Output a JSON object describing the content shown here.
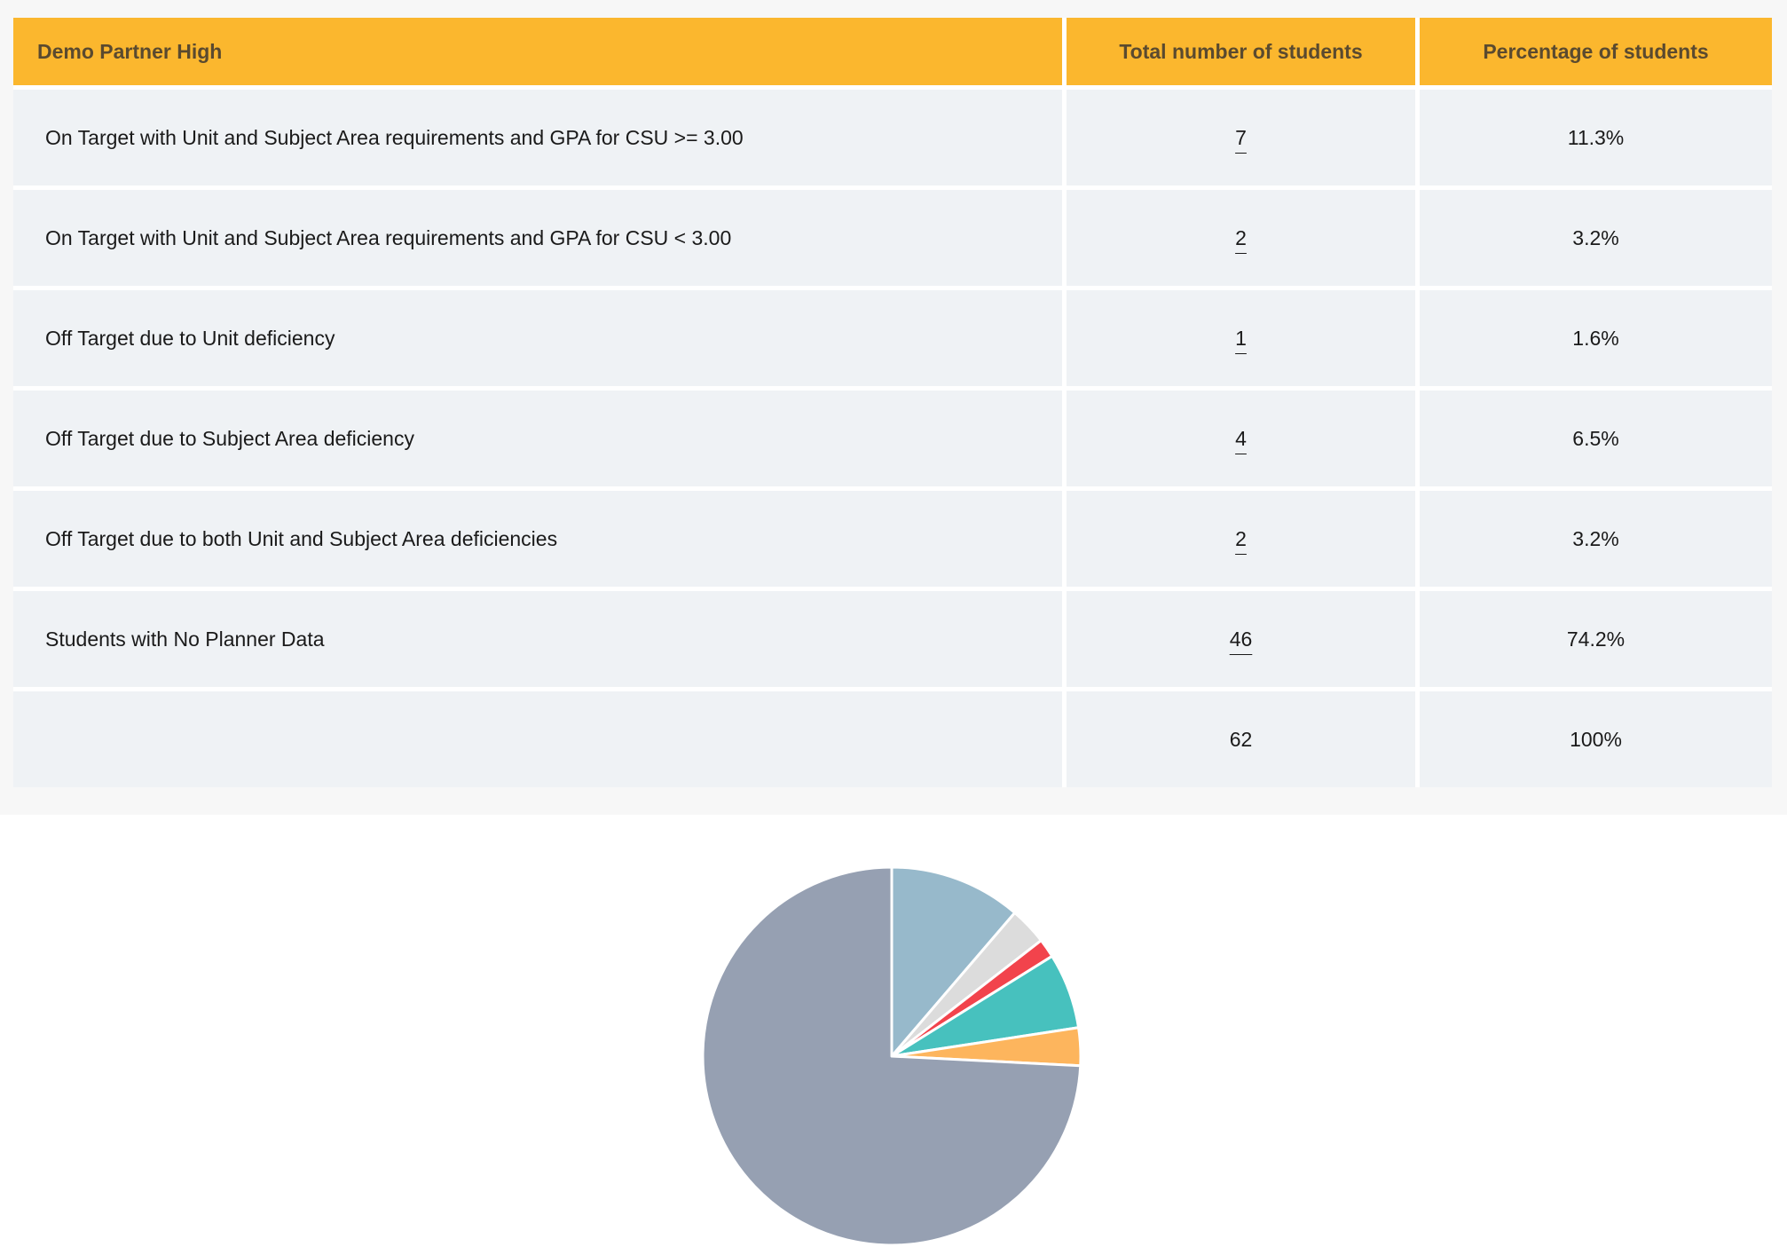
{
  "table": {
    "headers": {
      "label": "Demo Partner High",
      "total": "Total number of students",
      "percent": "Percentage of students"
    },
    "rows": [
      {
        "label": "On Target with Unit and Subject Area requirements and GPA for CSU >= 3.00",
        "total": "7",
        "percent": "11.3%"
      },
      {
        "label": "On Target with Unit and Subject Area requirements and GPA for CSU < 3.00",
        "total": "2",
        "percent": "3.2%"
      },
      {
        "label": "Off Target due to Unit deficiency",
        "total": "1",
        "percent": "1.6%"
      },
      {
        "label": "Off Target due to Subject Area deficiency",
        "total": "4",
        "percent": "6.5%"
      },
      {
        "label": "Off Target due to both Unit and Subject Area deficiencies",
        "total": "2",
        "percent": "3.2%"
      },
      {
        "label": "Students with No Planner Data",
        "total": "46",
        "percent": "74.2%"
      }
    ],
    "totals": {
      "label": "",
      "total": "62",
      "percent": "100%"
    }
  },
  "colors": {
    "header_bg": "#fbb72e",
    "row_bg": "#eff2f5"
  },
  "chart_data": {
    "type": "pie",
    "values": [
      7,
      2,
      1,
      4,
      2,
      46
    ],
    "colors": [
      "#97b9cb",
      "#dcdcdc",
      "#f2434c",
      "#47c1be",
      "#fdb55d",
      "#96a0b2"
    ]
  }
}
